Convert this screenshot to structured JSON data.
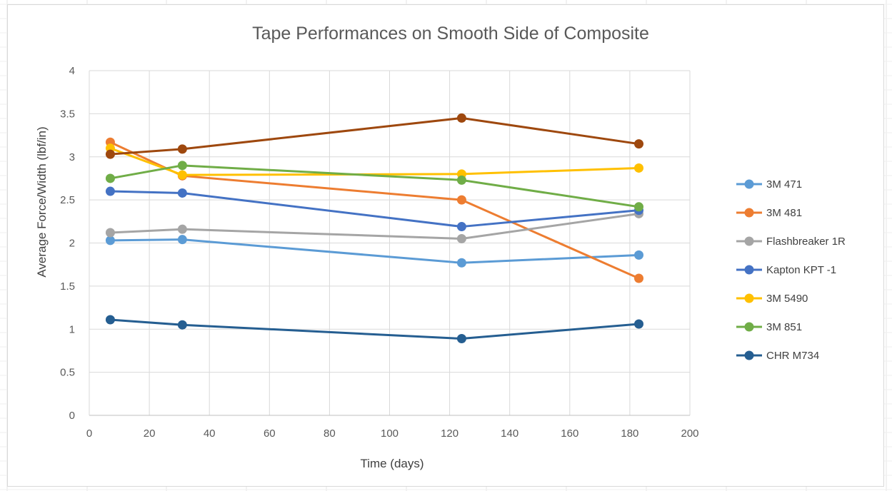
{
  "chart_data": {
    "type": "line",
    "title": "Tape Performances on Smooth Side of Composite",
    "xlabel": "Time (days)",
    "ylabel": "Average Force/Width (lbf/in)",
    "xlim": [
      0,
      200
    ],
    "ylim": [
      0,
      4
    ],
    "xticks": [
      0,
      20,
      40,
      60,
      80,
      100,
      120,
      140,
      160,
      180,
      200
    ],
    "yticks": [
      0,
      0.5,
      1,
      1.5,
      2,
      2.5,
      3,
      3.5,
      4
    ],
    "xtick_labels": [
      "0",
      "20",
      "40",
      "60",
      "80",
      "100",
      "120",
      "140",
      "160",
      "180",
      "200"
    ],
    "ytick_labels": [
      "0",
      "0.5",
      "1",
      "1.5",
      "2",
      "2.5",
      "3",
      "3.5",
      "4"
    ],
    "grid": true,
    "legend_position": "right",
    "x": [
      7,
      31,
      124,
      183
    ],
    "series": [
      {
        "name": "3M 471",
        "color": "#5B9BD5",
        "values": [
          2.03,
          2.04,
          1.77,
          1.86
        ],
        "in_legend": true
      },
      {
        "name": "3M 481",
        "color": "#ED7D31",
        "values": [
          3.17,
          2.78,
          2.5,
          1.59
        ],
        "in_legend": true
      },
      {
        "name": "Flashbreaker 1R",
        "color": "#A5A5A5",
        "values": [
          2.12,
          2.16,
          2.05,
          2.34
        ],
        "in_legend": true
      },
      {
        "name": "Kapton KPT -1",
        "color": "#4472C4",
        "values": [
          2.6,
          2.58,
          2.19,
          2.38
        ],
        "in_legend": true
      },
      {
        "name": "3M 5490",
        "color": "#FFC000",
        "values": [
          3.1,
          2.79,
          2.8,
          2.87
        ],
        "in_legend": true
      },
      {
        "name": "3M 851",
        "color": "#70AD47",
        "values": [
          2.75,
          2.9,
          2.73,
          2.42
        ],
        "in_legend": true
      },
      {
        "name": "CHR M734",
        "color": "#255E91",
        "values": [
          1.11,
          1.05,
          0.89,
          1.06
        ],
        "in_legend": true
      },
      {
        "name": "",
        "color": "#9E480E",
        "values": [
          3.03,
          3.09,
          3.45,
          3.15
        ],
        "in_legend": false
      }
    ]
  }
}
